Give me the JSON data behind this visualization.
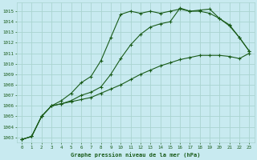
{
  "title": "Graphe pression niveau de la mer (hPa)",
  "background_color": "#c8eaf0",
  "grid_color": "#aad4d0",
  "line_color": "#1a5c1a",
  "xlim": [
    -0.5,
    23.5
  ],
  "ylim": [
    1002.5,
    1015.8
  ],
  "yticks": [
    1003,
    1004,
    1005,
    1006,
    1007,
    1008,
    1009,
    1010,
    1011,
    1012,
    1013,
    1014,
    1015
  ],
  "xticks": [
    0,
    1,
    2,
    3,
    4,
    5,
    6,
    7,
    8,
    9,
    10,
    11,
    12,
    13,
    14,
    15,
    16,
    17,
    18,
    19,
    20,
    21,
    22,
    23
  ],
  "series1_x": [
    0,
    1,
    2,
    3,
    4,
    5,
    6,
    7,
    8,
    9,
    10,
    11,
    12,
    13,
    14,
    15,
    16,
    17,
    18,
    19,
    20,
    21,
    22,
    23
  ],
  "series1_y": [
    1002.8,
    1003.1,
    1005.0,
    1006.0,
    1006.5,
    1007.2,
    1008.2,
    1008.8,
    1010.3,
    1012.5,
    1014.7,
    1015.0,
    1014.8,
    1015.0,
    1014.8,
    1015.0,
    1015.2,
    1015.0,
    1015.1,
    1015.2,
    1014.3,
    1013.6,
    1012.5,
    1011.2
  ],
  "series2_x": [
    0,
    1,
    2,
    3,
    4,
    5,
    6,
    7,
    8,
    9,
    10,
    11,
    12,
    13,
    14,
    15,
    16,
    17,
    18,
    19,
    20,
    21,
    22,
    23
  ],
  "series2_y": [
    1002.8,
    1003.1,
    1005.0,
    1006.0,
    1006.2,
    1006.4,
    1006.6,
    1006.8,
    1007.2,
    1007.6,
    1008.0,
    1008.5,
    1009.0,
    1009.4,
    1009.8,
    1010.1,
    1010.4,
    1010.6,
    1010.8,
    1010.8,
    1010.8,
    1010.7,
    1010.5,
    1011.0
  ],
  "series3_x": [
    0,
    1,
    2,
    3,
    4,
    5,
    6,
    7,
    8,
    9,
    10,
    11,
    12,
    13,
    14,
    15,
    16,
    17,
    18,
    19,
    20,
    21,
    22,
    23
  ],
  "series3_y": [
    1002.8,
    1003.1,
    1005.0,
    1006.0,
    1006.2,
    1006.5,
    1007.0,
    1007.3,
    1007.8,
    1009.0,
    1010.5,
    1011.8,
    1012.8,
    1013.5,
    1013.8,
    1014.0,
    1015.3,
    1015.0,
    1015.0,
    1014.8,
    1014.3,
    1013.7,
    1012.5,
    1011.2
  ],
  "figsize": [
    3.2,
    2.0
  ],
  "dpi": 100
}
